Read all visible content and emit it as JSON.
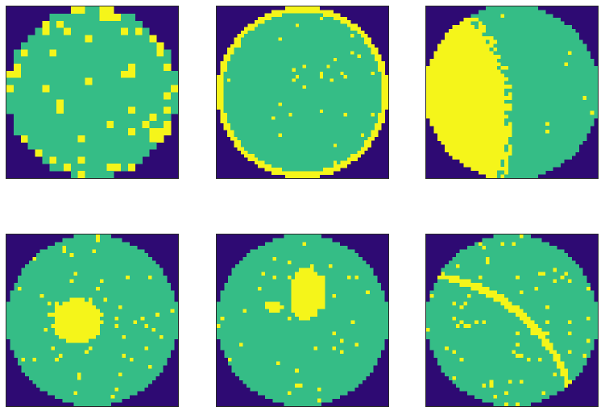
{
  "colors": {
    "background": "#2e0a73",
    "wafer": "#35bd86",
    "defect": "#f5f51a"
  },
  "wafer_maps": [
    {
      "id": "map-1",
      "pattern": "edge-loc",
      "grid": 24
    },
    {
      "id": "map-2",
      "pattern": "edge-ring",
      "grid": 50
    },
    {
      "id": "map-3",
      "pattern": "loc",
      "grid": 46
    },
    {
      "id": "map-4",
      "pattern": "center",
      "grid": 46
    },
    {
      "id": "map-5",
      "pattern": "loc",
      "grid": 46
    },
    {
      "id": "map-6",
      "pattern": "scratch",
      "grid": 46
    }
  ]
}
